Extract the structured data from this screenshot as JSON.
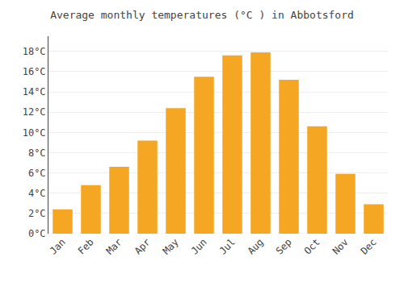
{
  "chart_data": {
    "type": "bar",
    "title": "Average monthly temperatures (°C ) in Abbotsford",
    "categories": [
      "Jan",
      "Feb",
      "Mar",
      "Apr",
      "May",
      "Jun",
      "Jul",
      "Aug",
      "Sep",
      "Oct",
      "Nov",
      "Dec"
    ],
    "values": [
      2.4,
      4.8,
      6.6,
      9.2,
      12.4,
      15.5,
      17.6,
      17.9,
      15.2,
      10.6,
      5.9,
      2.9
    ],
    "color": "#F5A623",
    "ylim": [
      0,
      19.5
    ],
    "yticks": [
      {
        "value": 0,
        "label": "0°C"
      },
      {
        "value": 2,
        "label": "2°C"
      },
      {
        "value": 4,
        "label": "4°C"
      },
      {
        "value": 6,
        "label": "6°C"
      },
      {
        "value": 8,
        "label": "8°C"
      },
      {
        "value": 10,
        "label": "10°C"
      },
      {
        "value": 12,
        "label": "12°C"
      },
      {
        "value": 14,
        "label": "14°C"
      },
      {
        "value": 16,
        "label": "16°C"
      },
      {
        "value": 18,
        "label": "18°C"
      }
    ],
    "grid": true
  }
}
